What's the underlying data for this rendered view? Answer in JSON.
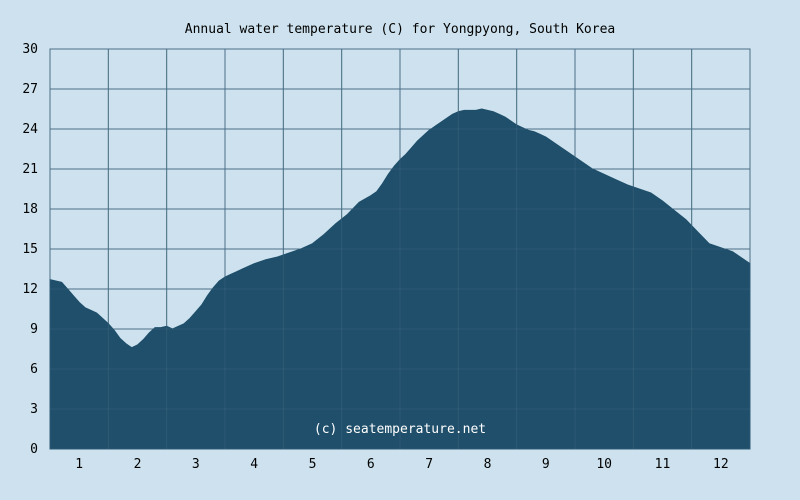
{
  "chart_data": {
    "type": "area",
    "title": "Annual water temperature (C) for Yongpyong, South Korea",
    "xlabel": "",
    "ylabel": "",
    "ylim": [
      0,
      30
    ],
    "xlim": [
      0.5,
      12.5
    ],
    "yticks": [
      0,
      3,
      6,
      9,
      12,
      15,
      18,
      21,
      24,
      27,
      30
    ],
    "xticks": [
      "1",
      "2",
      "3",
      "4",
      "5",
      "6",
      "7",
      "8",
      "9",
      "10",
      "11",
      "12"
    ],
    "grid": true,
    "fill_color": "#1f4f6b",
    "grid_color": "#4a6f86",
    "background_color": "#cde2ee",
    "plot_background_color": "#cde2ee",
    "watermark": "(c) seatemperature.net",
    "series": [
      {
        "x": [
          0.5,
          0.6,
          0.7,
          0.8,
          0.9,
          1.0,
          1.1,
          1.2,
          1.3,
          1.4,
          1.5,
          1.6,
          1.7,
          1.8,
          1.9,
          2.0,
          2.1,
          2.2,
          2.3,
          2.4,
          2.5,
          2.6,
          2.7,
          2.8,
          2.9,
          3.0,
          3.1,
          3.2,
          3.3,
          3.4,
          3.5,
          3.6,
          3.7,
          3.8,
          3.9,
          4.0,
          4.2,
          4.4,
          4.6,
          4.8,
          5.0,
          5.2,
          5.4,
          5.6,
          5.8,
          6.0,
          6.1,
          6.2,
          6.3,
          6.4,
          6.5,
          6.6,
          6.7,
          6.8,
          6.9,
          7.0,
          7.1,
          7.2,
          7.3,
          7.4,
          7.5,
          7.6,
          7.7,
          7.8,
          7.9,
          8.0,
          8.1,
          8.2,
          8.3,
          8.4,
          8.5,
          8.6,
          8.7,
          8.8,
          8.9,
          9.0,
          9.2,
          9.4,
          9.6,
          9.8,
          10.0,
          10.2,
          10.4,
          10.6,
          10.8,
          11.0,
          11.2,
          11.4,
          11.6,
          11.8,
          12.0,
          12.2,
          12.4,
          12.5
        ],
        "y": [
          12.7,
          12.6,
          12.5,
          12.0,
          11.5,
          11.0,
          10.6,
          10.4,
          10.2,
          9.8,
          9.4,
          8.9,
          8.3,
          7.9,
          7.6,
          7.8,
          8.2,
          8.7,
          9.1,
          9.1,
          9.2,
          9.0,
          9.2,
          9.4,
          9.8,
          10.3,
          10.8,
          11.5,
          12.1,
          12.6,
          12.9,
          13.1,
          13.3,
          13.5,
          13.7,
          13.9,
          14.2,
          14.4,
          14.7,
          15.0,
          15.4,
          16.1,
          16.9,
          17.6,
          18.5,
          19.0,
          19.3,
          19.9,
          20.6,
          21.2,
          21.7,
          22.1,
          22.6,
          23.1,
          23.5,
          23.9,
          24.2,
          24.5,
          24.8,
          25.1,
          25.3,
          25.4,
          25.4,
          25.4,
          25.5,
          25.4,
          25.3,
          25.1,
          24.9,
          24.6,
          24.3,
          24.1,
          23.9,
          23.8,
          23.6,
          23.4,
          22.8,
          22.2,
          21.6,
          21.0,
          20.6,
          20.2,
          19.8,
          19.5,
          19.2,
          18.6,
          17.9,
          17.2,
          16.3,
          15.4,
          15.1,
          14.8,
          14.2,
          13.9
        ]
      }
    ]
  }
}
